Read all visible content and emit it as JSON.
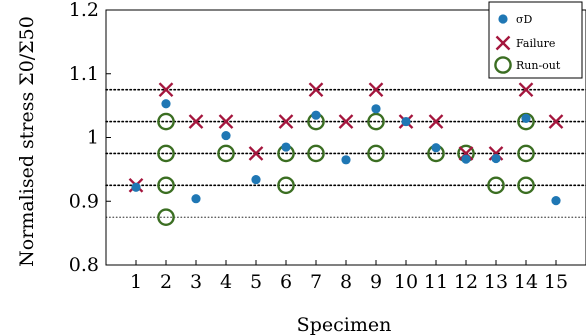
{
  "chart_data": {
    "type": "scatter",
    "xlabel": "Specimen",
    "ylabel": "Normalised stress Σ0/Σ50",
    "xlim": [
      0,
      16
    ],
    "ylim": [
      0.8,
      1.2
    ],
    "x_ticks": [
      1,
      2,
      3,
      4,
      5,
      6,
      7,
      8,
      9,
      10,
      11,
      12,
      13,
      14,
      15
    ],
    "y_ticks": [
      0.8,
      0.9,
      1,
      1.1,
      1.2
    ],
    "y_tick_labels": [
      "0.8",
      "0.9",
      "1",
      "1.1",
      "1.2"
    ],
    "reference_lines": {
      "dotted_thick": [
        0.925,
        0.975,
        1.025,
        1.075
      ],
      "dotted_thin": [
        0.875
      ]
    },
    "grid": false,
    "legend_position": "top-right",
    "series": [
      {
        "name": "σD",
        "marker": "filled-circle",
        "color": "#1f77b4",
        "points": [
          {
            "x": 1,
            "y": 0.922
          },
          {
            "x": 2,
            "y": 1.053
          },
          {
            "x": 3,
            "y": 0.904
          },
          {
            "x": 4,
            "y": 1.003
          },
          {
            "x": 5,
            "y": 0.934
          },
          {
            "x": 6,
            "y": 0.985
          },
          {
            "x": 7,
            "y": 1.035
          },
          {
            "x": 8,
            "y": 0.965
          },
          {
            "x": 9,
            "y": 1.045
          },
          {
            "x": 10,
            "y": 1.025
          },
          {
            "x": 11,
            "y": 0.984
          },
          {
            "x": 12,
            "y": 0.966
          },
          {
            "x": 13,
            "y": 0.967
          },
          {
            "x": 14,
            "y": 1.03
          },
          {
            "x": 15,
            "y": 0.901
          }
        ]
      },
      {
        "name": "Failure",
        "marker": "x-cross",
        "color": "#a4163d",
        "points": [
          {
            "x": 1,
            "y": 0.925
          },
          {
            "x": 2,
            "y": 1.075
          },
          {
            "x": 3,
            "y": 1.025
          },
          {
            "x": 4,
            "y": 1.025
          },
          {
            "x": 5,
            "y": 0.975
          },
          {
            "x": 6,
            "y": 1.025
          },
          {
            "x": 7,
            "y": 1.075
          },
          {
            "x": 8,
            "y": 1.025
          },
          {
            "x": 9,
            "y": 1.075
          },
          {
            "x": 10,
            "y": 1.025
          },
          {
            "x": 11,
            "y": 1.025
          },
          {
            "x": 12,
            "y": 0.975
          },
          {
            "x": 13,
            "y": 0.975
          },
          {
            "x": 14,
            "y": 1.075
          },
          {
            "x": 15,
            "y": 1.025
          }
        ]
      },
      {
        "name": "Run-out",
        "marker": "open-circle",
        "color": "#3b6e22",
        "points": [
          {
            "x": 2,
            "y": 1.025
          },
          {
            "x": 2,
            "y": 0.975
          },
          {
            "x": 2,
            "y": 0.925
          },
          {
            "x": 2,
            "y": 0.875
          },
          {
            "x": 4,
            "y": 0.975
          },
          {
            "x": 6,
            "y": 0.975
          },
          {
            "x": 6,
            "y": 0.925
          },
          {
            "x": 7,
            "y": 1.025
          },
          {
            "x": 7,
            "y": 0.975
          },
          {
            "x": 9,
            "y": 1.025
          },
          {
            "x": 9,
            "y": 0.975
          },
          {
            "x": 11,
            "y": 0.975
          },
          {
            "x": 12,
            "y": 0.975
          },
          {
            "x": 13,
            "y": 0.925
          },
          {
            "x": 14,
            "y": 1.025
          },
          {
            "x": 14,
            "y": 0.975
          },
          {
            "x": 14,
            "y": 0.925
          }
        ]
      }
    ]
  }
}
